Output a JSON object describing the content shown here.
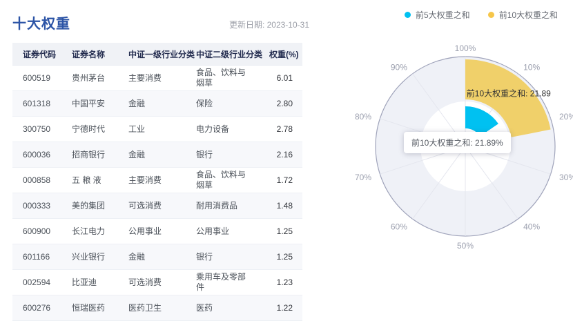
{
  "page": {
    "title": "十大权重",
    "update_date": "更新日期: 2023-10-31"
  },
  "colors": {
    "title_blue": "#2C54A6",
    "cyan": "#00C1F1",
    "legend_yellow": "#F6C64A",
    "bar_yellow": "#F0D06A",
    "axis_line": "#9FA3BA",
    "axis_split_fill": "#EFF1F7",
    "inner_fill": "#FFFFFF",
    "spoke": "#E4E6EE",
    "tick_label": "#9B9FAE",
    "bar_label_text": "#333333"
  },
  "table": {
    "columns": [
      "证券代码",
      "证券名称",
      "中证一级行业分类",
      "中证二级行业分类",
      "权重(%)"
    ],
    "rows": [
      [
        "600519",
        "贵州茅台",
        "主要消费",
        "食品、饮料与烟草",
        "6.01"
      ],
      [
        "601318",
        "中国平安",
        "金融",
        "保险",
        "2.80"
      ],
      [
        "300750",
        "宁德时代",
        "工业",
        "电力设备",
        "2.78"
      ],
      [
        "600036",
        "招商银行",
        "金融",
        "银行",
        "2.16"
      ],
      [
        "000858",
        "五 粮 液",
        "主要消费",
        "食品、饮料与烟草",
        "1.72"
      ],
      [
        "000333",
        "美的集团",
        "可选消费",
        "耐用消费品",
        "1.48"
      ],
      [
        "600900",
        "长江电力",
        "公用事业",
        "公用事业",
        "1.25"
      ],
      [
        "601166",
        "兴业银行",
        "金融",
        "银行",
        "1.25"
      ],
      [
        "002594",
        "比亚迪",
        "可选消费",
        "乘用车及零部件",
        "1.23"
      ],
      [
        "600276",
        "恒瑞医药",
        "医药卫生",
        "医药",
        "1.22"
      ]
    ]
  },
  "legend": {
    "items": [
      {
        "key": "top5",
        "label": "前5大权重之和",
        "color": "#00C1F1"
      },
      {
        "key": "top10",
        "label": "前10大权重之和",
        "color": "#F6C64A"
      }
    ]
  },
  "chart_data": {
    "type": "polar-bar",
    "title": "",
    "angle_axis": {
      "unit": "%",
      "min": 0,
      "max": 100,
      "tick_step": 10,
      "start_at_top": true,
      "clockwise": true,
      "tick_labels": [
        "100%",
        "10%",
        "20%",
        "30%",
        "40%",
        "50%",
        "60%",
        "70%",
        "80%",
        "90%"
      ]
    },
    "series": [
      {
        "key": "top5",
        "name": "前5大权重之和",
        "value": 15.47,
        "color": "#00C1F1",
        "label": ""
      },
      {
        "key": "top10",
        "name": "前10大权重之和",
        "value": 21.89,
        "color": "#F0D06A",
        "label": "前10大权重之和: 21.89"
      }
    ],
    "tooltip": {
      "text": "前10大权重之和: 21.89%"
    }
  }
}
